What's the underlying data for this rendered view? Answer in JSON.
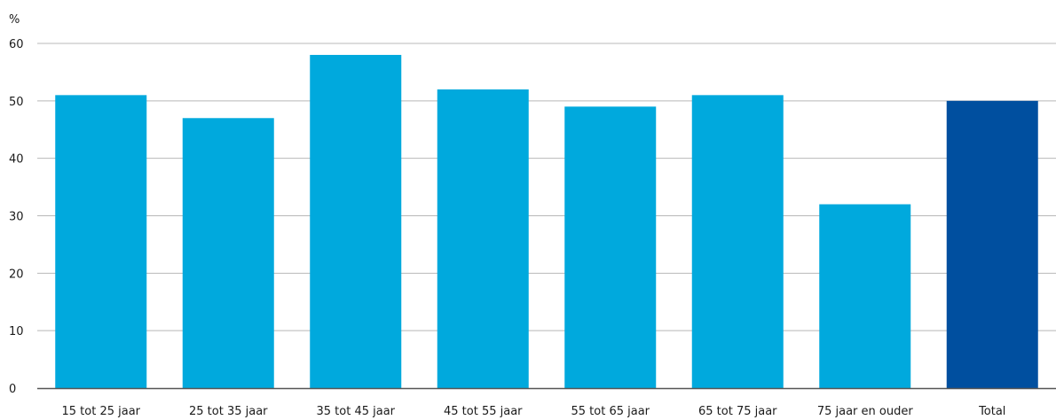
{
  "chart_data": {
    "type": "bar",
    "ylabel": "%",
    "ylim": [
      0,
      60
    ],
    "yticks": [
      0,
      10,
      20,
      30,
      40,
      50,
      60
    ],
    "grid": true,
    "categories": [
      "15 tot 25 jaar",
      "25 tot 35 jaar",
      "35 tot 45 jaar",
      "45 tot 55 jaar",
      "55 tot 65 jaar",
      "65 tot 75 jaar",
      "75 jaar en ouder",
      "Total"
    ],
    "values": [
      51,
      47,
      58,
      52,
      49,
      51,
      32,
      50
    ],
    "colors": [
      "#00a9dd",
      "#00a9dd",
      "#00a9dd",
      "#00a9dd",
      "#00a9dd",
      "#00a9dd",
      "#00a9dd",
      "#004f9f"
    ]
  },
  "colors": {
    "bar": "#00a9dd",
    "total_bar": "#004f9f",
    "grid": "#b8b8b8",
    "axis": "#555555"
  }
}
